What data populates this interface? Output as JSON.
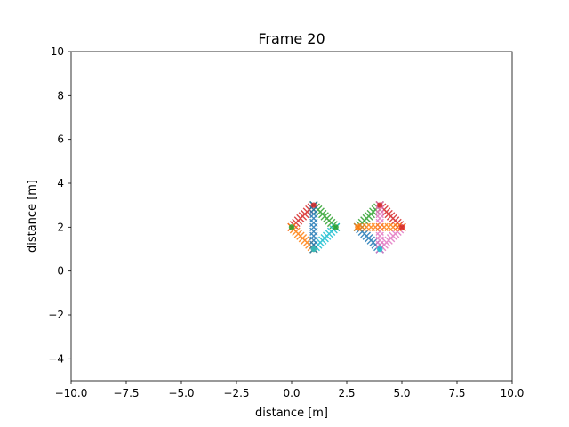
{
  "chart_data": {
    "type": "scatter",
    "title": "Frame 20",
    "xlabel": "distance [m]",
    "ylabel": "distance [m]",
    "xlim": [
      -10,
      10
    ],
    "ylim": [
      -5,
      10
    ],
    "xticks": [
      -10,
      -7.5,
      -5,
      -2.5,
      0,
      2.5,
      5,
      7.5,
      10
    ],
    "xtick_labels": [
      "−10.0",
      "−7.5",
      "−5.0",
      "−2.5",
      "0.0",
      "2.5",
      "5.0",
      "7.5",
      "10.0"
    ],
    "yticks": [
      -4,
      -2,
      0,
      2,
      4,
      6,
      8,
      10
    ],
    "ytick_labels": [
      "−4",
      "−2",
      "0",
      "2",
      "4",
      "6",
      "8",
      "10"
    ],
    "grid": false,
    "series": [
      {
        "color": "#d62728",
        "marker": "x",
        "x": [
          0.0,
          0.1,
          0.2,
          0.3,
          0.4,
          0.5,
          0.6,
          0.7,
          0.8,
          0.9,
          1.0
        ],
        "y": [
          2.0,
          2.1,
          2.2,
          2.3,
          2.4,
          2.5,
          2.6,
          2.7,
          2.8,
          2.9,
          3.0
        ]
      },
      {
        "color": "#2ca02c",
        "marker": "x",
        "x": [
          1.0,
          1.1,
          1.2,
          1.3,
          1.4,
          1.5,
          1.6,
          1.7,
          1.8,
          1.9,
          2.0
        ],
        "y": [
          3.0,
          2.9,
          2.8,
          2.7,
          2.6,
          2.5,
          2.4,
          2.3,
          2.2,
          2.1,
          2.0
        ]
      },
      {
        "color": "#17becf",
        "marker": "x",
        "x": [
          2.0,
          1.9,
          1.8,
          1.7,
          1.6,
          1.5,
          1.4,
          1.3,
          1.2,
          1.1,
          1.0
        ],
        "y": [
          2.0,
          1.9,
          1.8,
          1.7,
          1.6,
          1.5,
          1.4,
          1.3,
          1.2,
          1.1,
          1.0
        ]
      },
      {
        "color": "#ff7f0e",
        "marker": "x",
        "x": [
          1.0,
          0.9,
          0.8,
          0.7,
          0.6,
          0.5,
          0.4,
          0.3,
          0.2,
          0.1,
          0.0
        ],
        "y": [
          1.0,
          1.1,
          1.2,
          1.3,
          1.4,
          1.5,
          1.6,
          1.7,
          1.8,
          1.9,
          2.0
        ]
      },
      {
        "color": "#1f77b4",
        "marker": "x",
        "x": [
          1.0,
          1.0,
          1.0,
          1.0,
          1.0,
          1.0,
          1.0,
          1.0,
          1.0,
          1.0,
          1.0
        ],
        "y": [
          1.0,
          1.2,
          1.4,
          1.6,
          1.8,
          2.0,
          2.2,
          2.4,
          2.6,
          2.8,
          3.0
        ]
      },
      {
        "color": "#2ca02c",
        "marker": "x",
        "x": [
          3.0,
          3.1,
          3.2,
          3.3,
          3.4,
          3.5,
          3.6,
          3.7,
          3.8,
          3.9,
          4.0
        ],
        "y": [
          2.0,
          2.1,
          2.2,
          2.3,
          2.4,
          2.5,
          2.6,
          2.7,
          2.8,
          2.9,
          3.0
        ]
      },
      {
        "color": "#d62728",
        "marker": "x",
        "x": [
          4.0,
          4.1,
          4.2,
          4.3,
          4.4,
          4.5,
          4.6,
          4.7,
          4.8,
          4.9,
          5.0
        ],
        "y": [
          3.0,
          2.9,
          2.8,
          2.7,
          2.6,
          2.5,
          2.4,
          2.3,
          2.2,
          2.1,
          2.0
        ]
      },
      {
        "color": "#e377c2",
        "marker": "x",
        "x": [
          5.0,
          4.9,
          4.8,
          4.7,
          4.6,
          4.5,
          4.4,
          4.3,
          4.2,
          4.1,
          4.0
        ],
        "y": [
          2.0,
          1.9,
          1.8,
          1.7,
          1.6,
          1.5,
          1.4,
          1.3,
          1.2,
          1.1,
          1.0
        ]
      },
      {
        "color": "#1f77b4",
        "marker": "x",
        "x": [
          4.0,
          3.9,
          3.8,
          3.7,
          3.6,
          3.5,
          3.4,
          3.3,
          3.2,
          3.1,
          3.0
        ],
        "y": [
          1.0,
          1.1,
          1.2,
          1.3,
          1.4,
          1.5,
          1.6,
          1.7,
          1.8,
          1.9,
          2.0
        ]
      },
      {
        "color": "#e377c2",
        "marker": "x",
        "x": [
          4.0,
          4.0,
          4.0,
          4.0,
          4.0,
          4.0,
          4.0,
          4.0,
          4.0,
          4.0,
          4.0
        ],
        "y": [
          1.0,
          1.2,
          1.4,
          1.6,
          1.8,
          2.0,
          2.2,
          2.4,
          2.6,
          2.8,
          3.0
        ]
      },
      {
        "color": "#ff7f0e",
        "marker": "x",
        "x": [
          3.0,
          3.2,
          3.4,
          3.6,
          3.8,
          4.0,
          4.2,
          4.4,
          4.6,
          4.8,
          5.0
        ],
        "y": [
          2.0,
          2.0,
          2.0,
          2.0,
          2.0,
          2.0,
          2.0,
          2.0,
          2.0,
          2.0,
          2.0
        ]
      }
    ],
    "vertices": [
      {
        "color": "#d62728",
        "marker": "o",
        "x": [
          1.0,
          4.0,
          5.0
        ],
        "y": [
          3.0,
          3.0,
          2.0
        ]
      },
      {
        "color": "#2ca02c",
        "marker": "o",
        "x": [
          0.0,
          2.0
        ],
        "y": [
          2.0,
          2.0
        ]
      },
      {
        "color": "#ff7f0e",
        "marker": "o",
        "x": [
          1.0,
          3.0
        ],
        "y": [
          1.0,
          2.0
        ]
      },
      {
        "color": "#17becf",
        "marker": "o",
        "x": [
          1.0,
          4.0
        ],
        "y": [
          1.0,
          1.0
        ]
      }
    ]
  }
}
